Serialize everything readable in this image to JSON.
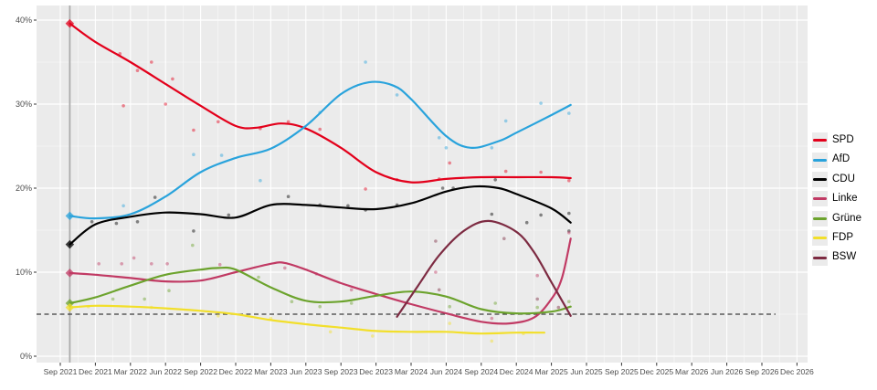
{
  "chart_data": {
    "type": "line",
    "description": "Poll trend lines with individual poll scatter dots for German parties, Sep 2021 election results marked as diamonds on a vertical line, 5% threshold as dashed horizontal line",
    "x_axis": {
      "tick_labels": [
        "Sep 2021",
        "Dec 2021",
        "Mar 2022",
        "Jun 2022",
        "Sep 2022",
        "Dec 2022",
        "Mar 2023",
        "Jun 2023",
        "Sep 2023",
        "Dec 2023",
        "Mar 2024",
        "Jun 2024",
        "Sep 2024",
        "Dec 2024",
        "Mar 2025",
        "Jun 2025",
        "Sep 2025",
        "Dec 2025",
        "Mar 2026",
        "Jun 2026",
        "Sep 2026",
        "Dec 2026"
      ],
      "unit": "quarter"
    },
    "y_axis": {
      "tick_labels": [
        "0%",
        "10%",
        "20%",
        "30%",
        "40%"
      ],
      "tick_values": [
        0,
        10,
        20,
        30,
        40
      ],
      "ylim": [
        0,
        42.5
      ]
    },
    "threshold_line": {
      "value": 5,
      "style": "dashed",
      "color": "#3c3c3c"
    },
    "election_marker": {
      "q": 0.27,
      "line_color": "#ababab",
      "results": [
        {
          "party": "SPD",
          "value": 39.6
        },
        {
          "party": "AfD",
          "value": 16.7
        },
        {
          "party": "CDU",
          "value": 13.3
        },
        {
          "party": "Linke",
          "value": 9.9
        },
        {
          "party": "Grüne",
          "value": 6.3
        },
        {
          "party": "FDP",
          "value": 5.8
        }
      ]
    },
    "legend_position": "right",
    "series": [
      {
        "name": "SPD",
        "color": "#E3001B",
        "trend": [
          [
            0.27,
            39.6
          ],
          [
            1,
            37.4
          ],
          [
            2,
            35.0
          ],
          [
            3,
            32.4
          ],
          [
            4,
            29.8
          ],
          [
            5,
            27.4
          ],
          [
            5.6,
            27.2
          ],
          [
            6.3,
            27.7
          ],
          [
            7,
            27.1
          ],
          [
            8,
            24.8
          ],
          [
            9,
            21.9
          ],
          [
            10,
            20.7
          ],
          [
            11,
            21.1
          ],
          [
            12,
            21.3
          ],
          [
            13,
            21.3
          ],
          [
            14,
            21.3
          ],
          [
            14.55,
            21.2
          ]
        ],
        "polls": [
          [
            1.7,
            36
          ],
          [
            1.8,
            29.8
          ],
          [
            2.2,
            34
          ],
          [
            2.6,
            35
          ],
          [
            3.0,
            30
          ],
          [
            3.2,
            33
          ],
          [
            3.8,
            26.9
          ],
          [
            4.5,
            27.9
          ],
          [
            5.7,
            27.1
          ],
          [
            6.5,
            27.9
          ],
          [
            7.4,
            27
          ],
          [
            8.7,
            19.9
          ],
          [
            9.6,
            21
          ],
          [
            10.8,
            21.1
          ],
          [
            11.1,
            23
          ],
          [
            12.7,
            22
          ],
          [
            13.7,
            21.9
          ],
          [
            14.5,
            20.9
          ]
        ]
      },
      {
        "name": "AfD",
        "color": "#29A3DC",
        "trend": [
          [
            0.27,
            16.7
          ],
          [
            1,
            16.4
          ],
          [
            2,
            16.9
          ],
          [
            3,
            19.0
          ],
          [
            4,
            21.9
          ],
          [
            5,
            23.6
          ],
          [
            6,
            24.7
          ],
          [
            7,
            27.4
          ],
          [
            8,
            31.2
          ],
          [
            8.8,
            32.6
          ],
          [
            9.5,
            32.2
          ],
          [
            10,
            30.6
          ],
          [
            11,
            26.2
          ],
          [
            11.7,
            24.8
          ],
          [
            12.5,
            25.6
          ],
          [
            13,
            26.6
          ],
          [
            14,
            28.7
          ],
          [
            14.55,
            29.9
          ]
        ],
        "polls": [
          [
            1.8,
            17.9
          ],
          [
            3.8,
            24
          ],
          [
            4.6,
            23.9
          ],
          [
            5.7,
            20.9
          ],
          [
            7.4,
            29
          ],
          [
            8.7,
            35
          ],
          [
            9.6,
            31.1
          ],
          [
            10.8,
            26
          ],
          [
            11.0,
            24.8
          ],
          [
            12.3,
            24.8
          ],
          [
            12.7,
            28
          ],
          [
            13.7,
            30.1
          ],
          [
            14.5,
            28.9
          ]
        ]
      },
      {
        "name": "CDU",
        "color": "#000000",
        "trend": [
          [
            0.27,
            13.3
          ],
          [
            1,
            15.7
          ],
          [
            2,
            16.6
          ],
          [
            3,
            17.1
          ],
          [
            4,
            16.9
          ],
          [
            5,
            16.5
          ],
          [
            6,
            18.0
          ],
          [
            7,
            18.0
          ],
          [
            8,
            17.7
          ],
          [
            9,
            17.5
          ],
          [
            10,
            18.2
          ],
          [
            11,
            19.6
          ],
          [
            11.8,
            20.2
          ],
          [
            12.5,
            20.0
          ],
          [
            13,
            19.3
          ],
          [
            14,
            17.6
          ],
          [
            14.55,
            15.9
          ]
        ],
        "polls": [
          [
            0.9,
            16
          ],
          [
            1.6,
            15.8
          ],
          [
            2.2,
            16
          ],
          [
            2.7,
            18.9
          ],
          [
            3.8,
            14.9
          ],
          [
            4.8,
            16.8
          ],
          [
            6.5,
            19
          ],
          [
            7.4,
            18
          ],
          [
            8.2,
            17.9
          ],
          [
            8.7,
            17.4
          ],
          [
            9.6,
            18
          ],
          [
            10.9,
            20
          ],
          [
            11.2,
            20
          ],
          [
            12.3,
            16.9
          ],
          [
            12.4,
            21
          ],
          [
            13.3,
            15.9
          ],
          [
            13.7,
            16.8
          ],
          [
            14.5,
            17
          ],
          [
            14.5,
            14.9
          ]
        ]
      },
      {
        "name": "Linke",
        "color": "#C13A64",
        "trend": [
          [
            0.27,
            9.9
          ],
          [
            1,
            9.7
          ],
          [
            2,
            9.3
          ],
          [
            3,
            8.9
          ],
          [
            4,
            9.0
          ],
          [
            5,
            10.0
          ],
          [
            6,
            11.0
          ],
          [
            6.4,
            11.1
          ],
          [
            7,
            10.3
          ],
          [
            8,
            8.7
          ],
          [
            9,
            7.4
          ],
          [
            10,
            6.2
          ],
          [
            11,
            5.1
          ],
          [
            12,
            4.1
          ],
          [
            12.8,
            3.9
          ],
          [
            13.5,
            4.6
          ],
          [
            14,
            6.8
          ],
          [
            14.3,
            9.3
          ],
          [
            14.55,
            14.0
          ]
        ],
        "polls": [
          [
            1.1,
            11
          ],
          [
            1.75,
            11
          ],
          [
            2.1,
            11.7
          ],
          [
            2.6,
            11
          ],
          [
            3.05,
            11
          ],
          [
            4.55,
            10.9
          ],
          [
            6.4,
            10.5
          ],
          [
            7.3,
            9.8
          ],
          [
            8.3,
            7.9
          ],
          [
            10.7,
            10
          ],
          [
            12.3,
            4.5
          ],
          [
            13.6,
            9.6
          ],
          [
            14.5,
            14.7
          ]
        ]
      },
      {
        "name": "Grüne",
        "color": "#6CA32D",
        "trend": [
          [
            0.27,
            6.3
          ],
          [
            1,
            7.0
          ],
          [
            2,
            8.4
          ],
          [
            3,
            9.7
          ],
          [
            4,
            10.3
          ],
          [
            4.5,
            10.5
          ],
          [
            5,
            10.3
          ],
          [
            6,
            8.2
          ],
          [
            7,
            6.6
          ],
          [
            8,
            6.5
          ],
          [
            9,
            7.2
          ],
          [
            10,
            7.7
          ],
          [
            11,
            7.1
          ],
          [
            12,
            5.6
          ],
          [
            13,
            5.1
          ],
          [
            14,
            5.3
          ],
          [
            14.55,
            5.9
          ]
        ],
        "polls": [
          [
            1.5,
            6.8
          ],
          [
            2.4,
            6.8
          ],
          [
            3.1,
            7.8
          ],
          [
            3.77,
            13.2
          ],
          [
            5.65,
            9.4
          ],
          [
            6.6,
            6.5
          ],
          [
            7.4,
            5.9
          ],
          [
            8.3,
            6.3
          ],
          [
            11.1,
            5.9
          ],
          [
            12.4,
            6.3
          ],
          [
            13.6,
            5.8
          ],
          [
            14.5,
            6.5
          ]
        ]
      },
      {
        "name": "FDP",
        "color": "#F2DF2B",
        "trend": [
          [
            0.27,
            5.8
          ],
          [
            1,
            6.0
          ],
          [
            2,
            5.9
          ],
          [
            3,
            5.7
          ],
          [
            4,
            5.4
          ],
          [
            5,
            5.0
          ],
          [
            6,
            4.3
          ],
          [
            7,
            3.8
          ],
          [
            8,
            3.4
          ],
          [
            9,
            3.0
          ],
          [
            10,
            2.9
          ],
          [
            11,
            2.9
          ],
          [
            12,
            2.7
          ],
          [
            13,
            2.8
          ],
          [
            13.8,
            2.8
          ]
        ],
        "polls": [
          [
            0.8,
            5.9
          ],
          [
            2.6,
            5.8
          ],
          [
            4.5,
            4.8
          ],
          [
            6.0,
            4.5
          ],
          [
            7.7,
            2.9
          ],
          [
            8.9,
            2.4
          ],
          [
            11.1,
            3.9
          ],
          [
            12.3,
            1.8
          ],
          [
            13.2,
            2.7
          ]
        ]
      },
      {
        "name": "BSW",
        "color": "#7D2B42",
        "trend": [
          [
            9.6,
            4.7
          ],
          [
            10.2,
            8.4
          ],
          [
            10.8,
            12.0
          ],
          [
            11.5,
            14.9
          ],
          [
            12.2,
            16.1
          ],
          [
            13,
            14.8
          ],
          [
            13.5,
            12.4
          ],
          [
            14,
            8.8
          ],
          [
            14.55,
            4.8
          ]
        ],
        "polls": [
          [
            10.7,
            13.7
          ],
          [
            10.8,
            7.9
          ],
          [
            12.65,
            14
          ],
          [
            13.6,
            6.8
          ],
          [
            14.2,
            5.8
          ]
        ]
      }
    ]
  },
  "panel": {
    "background": "#ebebeb",
    "grid_color": "#ffffff",
    "axis_text_color": "#4d4d4d"
  }
}
